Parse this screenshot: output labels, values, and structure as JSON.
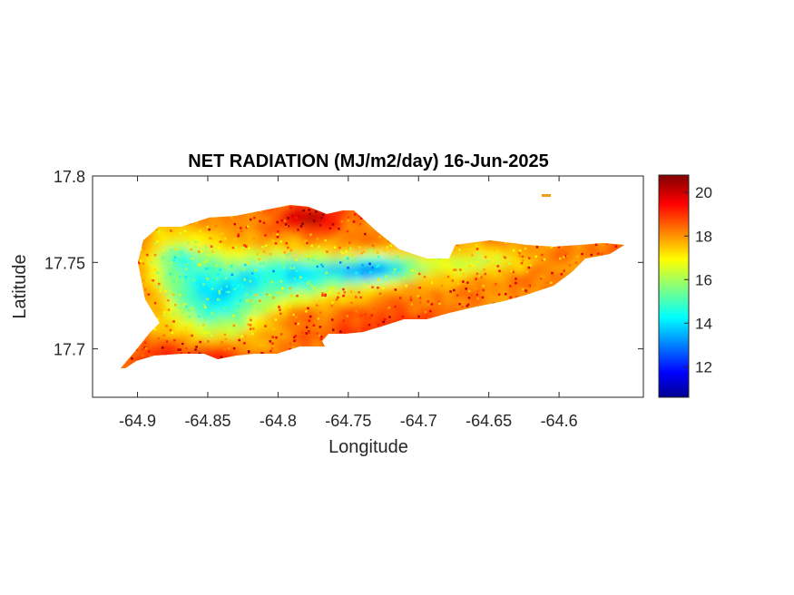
{
  "chart_data": {
    "type": "heatmap",
    "title": "NET RADIATION (MJ/m2/day) 16-Jun-2025",
    "xlabel": "Longitude",
    "ylabel": "Latitude",
    "xlim": [
      -64.932,
      -64.54
    ],
    "ylim": [
      17.672,
      17.8
    ],
    "x_ticks": [
      -64.9,
      -64.85,
      -64.8,
      -64.75,
      -64.7,
      -64.65,
      -64.6
    ],
    "x_tick_labels": [
      "-64.9",
      "-64.85",
      "-64.8",
      "-64.75",
      "-64.7",
      "-64.65",
      "-64.6"
    ],
    "y_ticks": [
      17.7,
      17.75,
      17.8
    ],
    "y_tick_labels": [
      "17.7",
      "17.75",
      "17.8"
    ],
    "grid": false,
    "colormap": "jet",
    "colorbar": {
      "limits": [
        10.6,
        20.8
      ],
      "ticks": [
        12,
        14,
        16,
        18,
        20
      ],
      "tick_labels": [
        "12",
        "14",
        "16",
        "18",
        "20"
      ]
    },
    "regions": [
      {
        "area": "western north (around -64.87, 17.755)",
        "approx_value": 15.5
      },
      {
        "area": "central west (around -64.84, 17.73)",
        "approx_value": 14.0
      },
      {
        "area": "central channel (around -64.74, 17.748)",
        "approx_value": 12.8
      },
      {
        "area": "north coast ridge (around -64.78, 17.775)",
        "approx_value": 18.5
      },
      {
        "area": "southwest coast (around -64.87, 17.695)",
        "approx_value": 19.5
      },
      {
        "area": "south central (around -64.73, 17.715)",
        "approx_value": 19.0
      },
      {
        "area": "east end (around -64.6, 17.745)",
        "approx_value": 18.0
      }
    ]
  }
}
